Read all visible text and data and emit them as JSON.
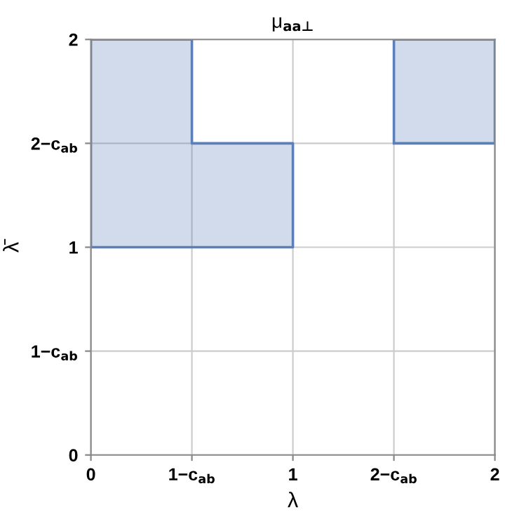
{
  "chart_data": {
    "type": "area",
    "title": "μ$_{aa⊥}$",
    "xlabel": "λ",
    "ylabel": "λ̄",
    "series": [
      {
        "color": "#5b7fb8",
        "x": [
          0,
          0,
          0.5,
          0.5,
          1,
          1,
          0
        ],
        "values": [
          1,
          2,
          2,
          1.5,
          1.5,
          1,
          1
        ]
      },
      {
        "color": "#5b7fb8",
        "x": [
          1.5,
          1.5,
          2,
          2,
          1.5
        ],
        "values": [
          1.5,
          2,
          2,
          1.5,
          1.5
        ]
      }
    ],
    "xlim": [
      0,
      2
    ],
    "ylim": [
      0,
      2
    ],
    "xticks": [
      0,
      {
        "value": 0.5,
        "label": "1−c$_{ab}$"
      },
      1,
      {
        "value": 1.5,
        "label": "2−c$_{ab}$"
      },
      2
    ],
    "yticks": [
      0,
      {
        "value": 0.5,
        "label": "1−c$_{ab}$"
      },
      1,
      {
        "value": 1.5,
        "label": "2−c$_{ab}$"
      },
      2
    ],
    "grid": true
  }
}
